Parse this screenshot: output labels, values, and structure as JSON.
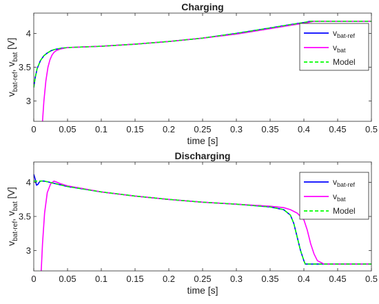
{
  "colors": {
    "vbat_ref": "#0000ff",
    "vbat": "#ff00ff",
    "model": "#00ff00"
  },
  "chart_data": [
    {
      "type": "line",
      "title": "Charging",
      "xlabel": "time [s]",
      "ylabel_main": "v",
      "ylabel_sub1": "bat-ref",
      "ylabel_mid": ", v",
      "ylabel_sub2": "bat",
      "ylabel_tail": " [V]",
      "xlim": [
        0,
        0.5
      ],
      "ylim": [
        2.7,
        4.3
      ],
      "x_ticks": [
        0,
        0.05,
        0.1,
        0.15,
        0.2,
        0.25,
        0.3,
        0.35,
        0.4,
        0.45,
        0.5
      ],
      "x_tick_labels": [
        "0",
        "0.05",
        "0.1",
        "0.15",
        "0.2",
        "0.25",
        "0.3",
        "0.35",
        "0.4",
        "0.45",
        "0.5"
      ],
      "y_ticks": [
        3,
        3.5,
        4
      ],
      "y_tick_labels": [
        "3",
        "3.5",
        "4"
      ],
      "legend_position": "top-right",
      "legend": [
        {
          "main": "v",
          "sub": "bat-ref",
          "color_key": "vbat_ref",
          "dash": false
        },
        {
          "main": "v",
          "sub": "bat",
          "color_key": "vbat",
          "dash": false
        },
        {
          "main": "Model",
          "sub": "",
          "color_key": "model",
          "dash": true
        }
      ],
      "series": [
        {
          "color_key": "vbat_ref",
          "dash": false,
          "x": [
            0,
            0.002,
            0.005,
            0.01,
            0.015,
            0.02,
            0.025,
            0.03,
            0.04,
            0.05,
            0.1,
            0.15,
            0.2,
            0.25,
            0.3,
            0.35,
            0.38,
            0.4,
            0.41,
            0.42,
            0.5
          ],
          "y": [
            3.2,
            3.34,
            3.48,
            3.6,
            3.67,
            3.71,
            3.74,
            3.76,
            3.78,
            3.79,
            3.81,
            3.84,
            3.88,
            3.93,
            4.0,
            4.08,
            4.13,
            4.16,
            4.18,
            4.18,
            4.18
          ]
        },
        {
          "color_key": "vbat",
          "dash": false,
          "x": [
            0.013,
            0.015,
            0.018,
            0.021,
            0.024,
            0.027,
            0.03,
            0.034,
            0.04,
            0.05,
            0.1,
            0.15,
            0.2,
            0.25,
            0.3,
            0.35,
            0.38,
            0.4,
            0.41,
            0.415,
            0.42,
            0.5
          ],
          "y": [
            2.7,
            3.0,
            3.3,
            3.5,
            3.61,
            3.68,
            3.72,
            3.75,
            3.77,
            3.79,
            3.81,
            3.84,
            3.88,
            3.93,
            3.99,
            4.07,
            4.12,
            4.15,
            4.17,
            4.18,
            4.18,
            4.18
          ]
        },
        {
          "color_key": "model",
          "dash": true,
          "x": [
            0,
            0.002,
            0.005,
            0.01,
            0.015,
            0.02,
            0.025,
            0.03,
            0.04,
            0.05,
            0.1,
            0.15,
            0.2,
            0.25,
            0.3,
            0.35,
            0.38,
            0.4,
            0.41,
            0.42,
            0.5
          ],
          "y": [
            3.2,
            3.34,
            3.48,
            3.6,
            3.67,
            3.71,
            3.74,
            3.76,
            3.78,
            3.79,
            3.81,
            3.84,
            3.88,
            3.93,
            4.0,
            4.08,
            4.13,
            4.16,
            4.18,
            4.18,
            4.18
          ]
        }
      ]
    },
    {
      "type": "line",
      "title": "Discharging",
      "xlabel": "time [s]",
      "ylabel_main": "v",
      "ylabel_sub1": "bat-ref",
      "ylabel_mid": ", v",
      "ylabel_sub2": "bat",
      "ylabel_tail": " [V]",
      "xlim": [
        0,
        0.5
      ],
      "ylim": [
        2.7,
        4.3
      ],
      "x_ticks": [
        0,
        0.05,
        0.1,
        0.15,
        0.2,
        0.25,
        0.3,
        0.35,
        0.4,
        0.45,
        0.5
      ],
      "x_tick_labels": [
        "0",
        "0.05",
        "0.1",
        "0.15",
        "0.2",
        "0.25",
        "0.3",
        "0.35",
        "0.4",
        "0.45",
        "0.5"
      ],
      "y_ticks": [
        3,
        3.5,
        4
      ],
      "y_tick_labels": [
        "3",
        "3.5",
        "4"
      ],
      "legend_position": "top-right",
      "legend": [
        {
          "main": "v",
          "sub": "bat-ref",
          "color_key": "vbat_ref",
          "dash": false
        },
        {
          "main": "v",
          "sub": "bat",
          "color_key": "vbat",
          "dash": false
        },
        {
          "main": "Model",
          "sub": "",
          "color_key": "model",
          "dash": true
        }
      ],
      "series": [
        {
          "color_key": "vbat_ref",
          "dash": false,
          "x": [
            0,
            0.002,
            0.004,
            0.006,
            0.008,
            0.01,
            0.015,
            0.02,
            0.05,
            0.1,
            0.15,
            0.2,
            0.25,
            0.3,
            0.35,
            0.37,
            0.38,
            0.385,
            0.39,
            0.395,
            0.4,
            0.402,
            0.405,
            0.5
          ],
          "y": [
            4.12,
            4.05,
            3.96,
            3.97,
            4.0,
            4.02,
            4.02,
            4.01,
            3.94,
            3.86,
            3.8,
            3.75,
            3.71,
            3.68,
            3.64,
            3.6,
            3.52,
            3.4,
            3.2,
            3.0,
            2.85,
            2.8,
            2.8,
            2.8
          ]
        },
        {
          "color_key": "vbat",
          "dash": false,
          "x": [
            0.011,
            0.013,
            0.016,
            0.02,
            0.025,
            0.03,
            0.035,
            0.04,
            0.05,
            0.1,
            0.15,
            0.2,
            0.25,
            0.3,
            0.35,
            0.37,
            0.38,
            0.39,
            0.4,
            0.405,
            0.41,
            0.415,
            0.42,
            0.43,
            0.5
          ],
          "y": [
            2.7,
            3.1,
            3.55,
            3.85,
            3.98,
            4.02,
            4.0,
            3.98,
            3.95,
            3.86,
            3.8,
            3.75,
            3.71,
            3.68,
            3.65,
            3.63,
            3.6,
            3.55,
            3.45,
            3.3,
            3.1,
            2.95,
            2.85,
            2.8,
            2.8
          ]
        },
        {
          "color_key": "model",
          "dash": true,
          "x": [
            0,
            0.005,
            0.01,
            0.015,
            0.02,
            0.05,
            0.1,
            0.15,
            0.2,
            0.25,
            0.3,
            0.35,
            0.37,
            0.38,
            0.385,
            0.39,
            0.395,
            0.4,
            0.402,
            0.405,
            0.5
          ],
          "y": [
            4.02,
            4.02,
            4.02,
            4.02,
            4.01,
            3.94,
            3.86,
            3.8,
            3.75,
            3.71,
            3.68,
            3.64,
            3.6,
            3.52,
            3.4,
            3.2,
            3.0,
            2.85,
            2.8,
            2.8,
            2.8
          ]
        }
      ]
    }
  ]
}
